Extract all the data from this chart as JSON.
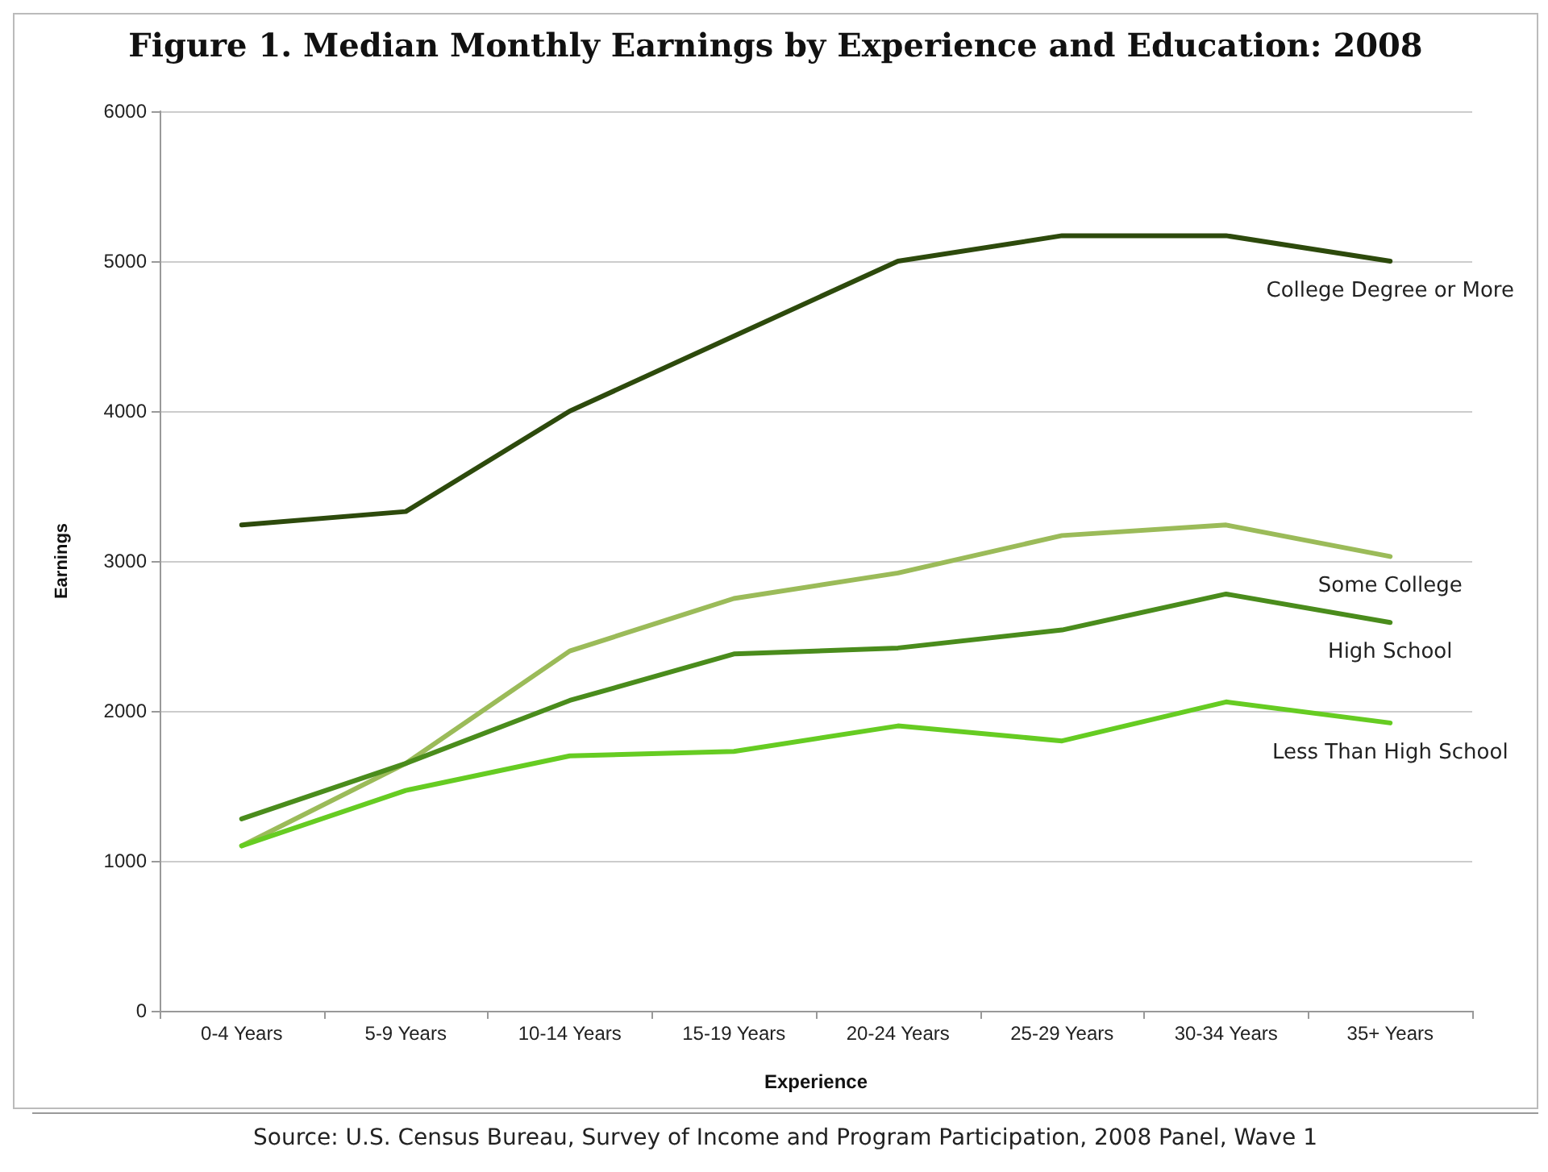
{
  "chart_data": {
    "type": "line",
    "title": "Figure 1. Median Monthly Earnings by Experience and Education: 2008",
    "xlabel": "Experience",
    "ylabel": "Earnings",
    "annotations": [
      "Source: U.S. Census Bureau, Survey of Income and Program Participation, 2008 Panel, Wave 1"
    ],
    "categories": [
      "0-4 Years",
      "5-9 Years",
      "10-14 Years",
      "15-19 Years",
      "20-24 Years",
      "25-29 Years",
      "30-34 Years",
      "35+ Years"
    ],
    "series": [
      {
        "name": "College Degree or More",
        "color": "#2d4a0c",
        "values": [
          3240,
          3330,
          4000,
          4500,
          5000,
          5170,
          5170,
          5000
        ]
      },
      {
        "name": "Some College",
        "color": "#9bbb59",
        "values": [
          1100,
          1650,
          2400,
          2750,
          2920,
          3170,
          3240,
          3030
        ]
      },
      {
        "name": "High School",
        "color": "#4a8c1c",
        "values": [
          1280,
          1650,
          2070,
          2380,
          2420,
          2540,
          2780,
          2590
        ]
      },
      {
        "name": "Less Than High School",
        "color": "#66cc22",
        "values": [
          1100,
          1470,
          1700,
          1730,
          1900,
          1800,
          2060,
          1920
        ]
      }
    ],
    "ylim": [
      0,
      6000
    ],
    "yticks": [
      0,
      1000,
      2000,
      3000,
      4000,
      5000,
      6000
    ],
    "grid": "y",
    "legend": false,
    "marker": "none",
    "line_style": "solid"
  }
}
